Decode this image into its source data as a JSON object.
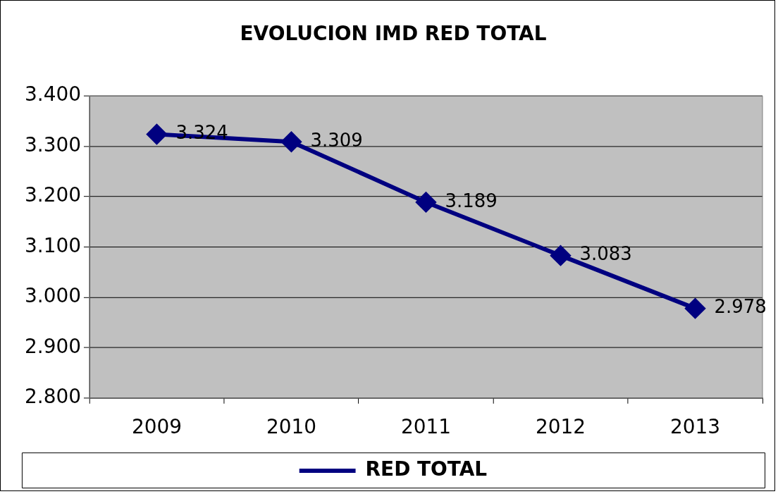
{
  "chart_data": {
    "type": "line",
    "title": "EVOLUCION IMD RED TOTAL",
    "categories": [
      "2009",
      "2010",
      "2011",
      "2012",
      "2013"
    ],
    "series": [
      {
        "name": "RED TOTAL",
        "color": "#000080",
        "values": [
          3324,
          3309,
          3189,
          3083,
          2978
        ],
        "value_labels": [
          "3.324",
          "3.309",
          "3.189",
          "3.083",
          "2.978"
        ]
      }
    ],
    "ylim": [
      2800,
      3400
    ],
    "yticks": [
      {
        "value": 2800,
        "label": "2.800"
      },
      {
        "value": 2900,
        "label": "2.900"
      },
      {
        "value": 3000,
        "label": "3.000"
      },
      {
        "value": 3100,
        "label": "3.100"
      },
      {
        "value": 3200,
        "label": "3.200"
      },
      {
        "value": 3300,
        "label": "3.300"
      },
      {
        "value": 3400,
        "label": "3.400"
      }
    ],
    "grid": "y",
    "legend": "bottom",
    "marker": "diamond",
    "line_style": "solid"
  }
}
